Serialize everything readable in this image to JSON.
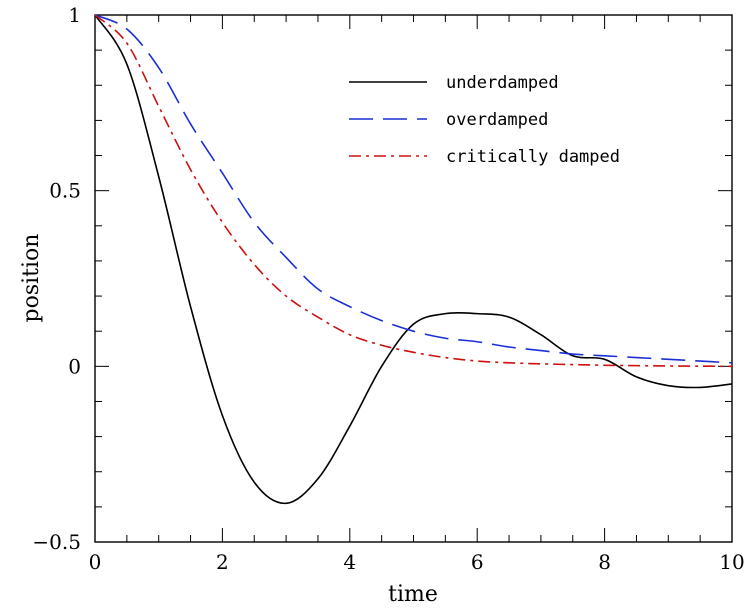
{
  "chart_data": {
    "type": "line",
    "title": "",
    "xlabel": "time",
    "ylabel": "position",
    "xlim": [
      0,
      10
    ],
    "ylim": [
      -0.5,
      1
    ],
    "grid": false,
    "legend_position": "top-right",
    "x_ticks": [
      0,
      2,
      4,
      6,
      8,
      10
    ],
    "x_tick_labels": [
      "0",
      "2",
      "4",
      "6",
      "8",
      "10"
    ],
    "y_ticks": [
      -0.5,
      0,
      0.5,
      1
    ],
    "y_tick_labels": [
      "−0.5",
      "0",
      "0.5",
      "1"
    ],
    "x": [
      0,
      0.5,
      1,
      1.5,
      2,
      2.5,
      3,
      3.5,
      4,
      4.5,
      5,
      5.5,
      6,
      6.5,
      7,
      7.5,
      8,
      8.5,
      9,
      9.5,
      10
    ],
    "series": [
      {
        "name": "underdamped",
        "color": "#000000",
        "dash": "solid",
        "values": [
          1,
          0.86,
          0.54,
          0.17,
          -0.14,
          -0.33,
          -0.39,
          -0.32,
          -0.17,
          0,
          0.12,
          0.15,
          0.15,
          0.14,
          0.09,
          0.03,
          0.02,
          -0.03,
          -0.055,
          -0.06,
          -0.05
        ]
      },
      {
        "name": "overdamped",
        "color": "#1a2fd6",
        "dash": "long-dash",
        "values": [
          1,
          0.96,
          0.85,
          0.69,
          0.55,
          0.41,
          0.31,
          0.22,
          0.17,
          0.13,
          0.1,
          0.08,
          0.07,
          0.055,
          0.045,
          0.035,
          0.03,
          0.025,
          0.02,
          0.015,
          0.01
        ]
      },
      {
        "name": "critically damped",
        "color": "#cc1111",
        "dash": "dash-dot",
        "values": [
          1,
          0.92,
          0.74,
          0.56,
          0.41,
          0.29,
          0.2,
          0.14,
          0.09,
          0.06,
          0.04,
          0.025,
          0.015,
          0.01,
          0.007,
          0.005,
          0.003,
          0.002,
          0.001,
          0.0005,
          0
        ]
      }
    ]
  }
}
